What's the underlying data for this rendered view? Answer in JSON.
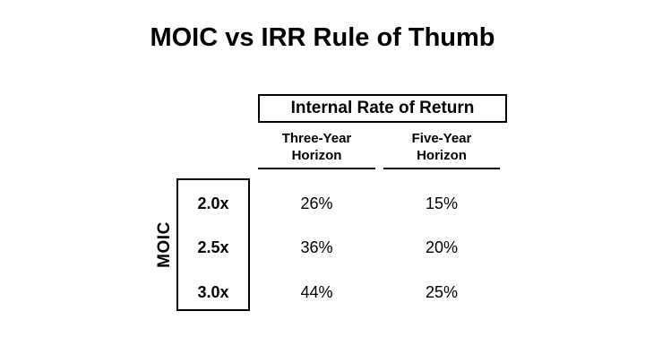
{
  "slide": {
    "title": "MOIC vs IRR Rule of Thumb",
    "background_color": "#ffffff",
    "text_color": "#000000"
  },
  "table": {
    "group_header": "Internal Rate of Return",
    "row_axis_label": "MOIC",
    "columns": [
      {
        "label": "Three-Year\nHorizon"
      },
      {
        "label": "Five-Year\nHorizon"
      }
    ],
    "rows": [
      {
        "moic": "2.0x",
        "three_year": "26%",
        "five_year": "15%"
      },
      {
        "moic": "2.5x",
        "three_year": "36%",
        "five_year": "20%"
      },
      {
        "moic": "3.0x",
        "three_year": "44%",
        "five_year": "25%"
      }
    ]
  },
  "chart_data": {
    "type": "table",
    "title": "MOIC vs IRR Rule of Thumb",
    "column_group_header": "Internal Rate of Return",
    "row_group_header": "MOIC",
    "columns": [
      "Three-Year Horizon",
      "Five-Year Horizon"
    ],
    "rows": [
      "2.0x",
      "2.5x",
      "3.0x"
    ],
    "values_text": [
      [
        "26%",
        "15%"
      ],
      [
        "36%",
        "20%"
      ],
      [
        "44%",
        "25%"
      ]
    ],
    "values_numeric_percent": [
      [
        26,
        15
      ],
      [
        36,
        20
      ],
      [
        44,
        25
      ]
    ]
  }
}
